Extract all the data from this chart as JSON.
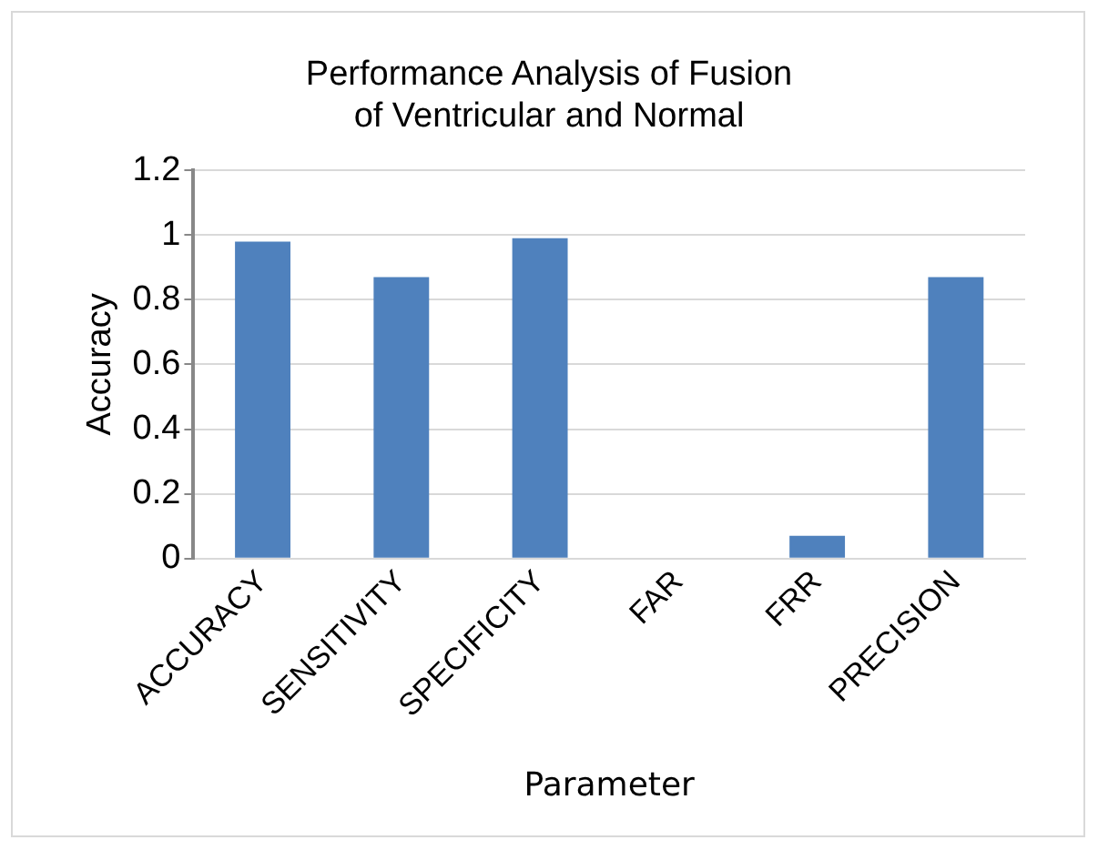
{
  "chart_data": {
    "type": "bar",
    "title": "Performance Analysis of Fusion of Ventricular and Normal",
    "xlabel": "Parameter",
    "ylabel": "Accuracy",
    "categories": [
      "ACCURACY",
      "SENSITIVITY",
      "SPECIFICITY",
      "FAR",
      "FRR",
      "PRECISION"
    ],
    "series": [
      {
        "color": "#4f81bd",
        "values": [
          0.98,
          0.87,
          0.99,
          0,
          0.07,
          0.87
        ]
      }
    ],
    "ylim": [
      0,
      1.2
    ],
    "yticks": [
      0,
      {
        "value": 0.2,
        "label": "0.2"
      },
      {
        "value": 0.4,
        "label": "0.4"
      },
      {
        "value": 0.6,
        "label": "0.6"
      },
      {
        "value": 0.8,
        "label": "0.8"
      },
      1,
      {
        "value": 1.2,
        "label": "1.2"
      }
    ],
    "grid": "y",
    "legend": false
  }
}
